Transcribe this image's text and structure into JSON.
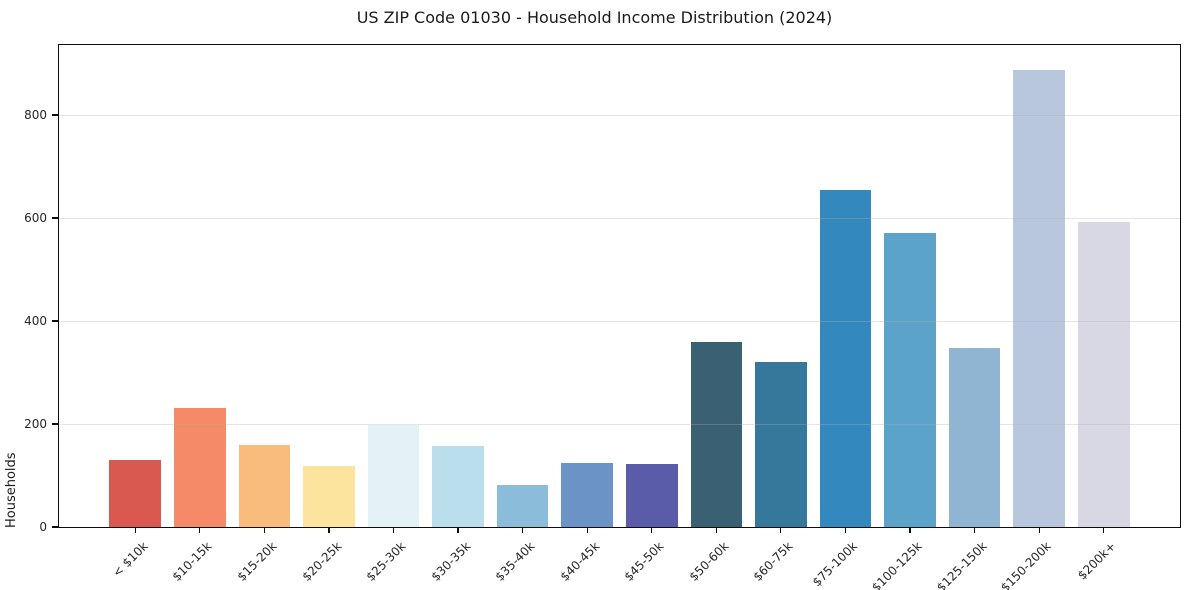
{
  "title": "US ZIP Code 01030 - Household Income Distribution (2024)",
  "chart_data": {
    "type": "bar",
    "title": "US ZIP Code 01030 - Household Income Distribution (2024)",
    "xlabel": "",
    "ylabel": "Households",
    "categories": [
      "< $10k",
      "$10-15k",
      "$15-20k",
      "$20-25k",
      "$25-30k",
      "$30-35k",
      "$35-40k",
      "$40-45k",
      "$45-50k",
      "$50-60k",
      "$60-75k",
      "$75-100k",
      "$100-125k",
      "$125-150k",
      "$150-200k",
      "$200k+"
    ],
    "values": [
      131,
      231,
      160,
      119,
      199,
      158,
      82,
      125,
      123,
      359,
      320,
      654,
      570,
      347,
      888,
      593
    ],
    "bar_colors": [
      "#d9584f",
      "#f48a68",
      "#fabc7d",
      "#fce49e",
      "#e4f1f5",
      "#bbdeec",
      "#8bbddb",
      "#6b93c6",
      "#5b5ca9",
      "#3a6073",
      "#36789c",
      "#3389bd",
      "#5ca3c9",
      "#8fb5d3",
      "#b9c7de",
      "#d7d8e4"
    ],
    "yticks": [
      0,
      200,
      400,
      600,
      800
    ],
    "ylim": [
      0,
      936
    ],
    "grid": "horizontal-only",
    "legend": "none",
    "plot_background": "#ffffff",
    "spine_color": "#0d0d0d"
  }
}
